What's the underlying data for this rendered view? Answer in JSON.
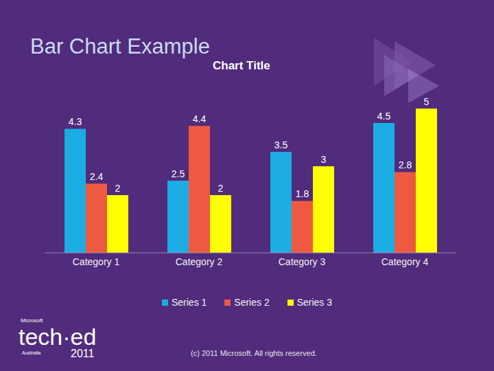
{
  "chart_data": {
    "type": "bar",
    "title": "Chart Title",
    "categories": [
      "Category 1",
      "Category 2",
      "Category 3",
      "Category 4"
    ],
    "series": [
      {
        "name": "Series 1",
        "color": "#1CADE4",
        "values": [
          4.3,
          2.5,
          3.5,
          4.5
        ]
      },
      {
        "name": "Series 2",
        "color": "#EE5A41",
        "values": [
          2.4,
          4.4,
          1.8,
          2.8
        ]
      },
      {
        "name": "Series 3",
        "color": "#FFFF00",
        "values": [
          2,
          2,
          3,
          5
        ]
      }
    ],
    "ylim": [
      0,
      5
    ],
    "grid": false,
    "legend": "bottom",
    "data_labels": true,
    "tick_labels": "x"
  },
  "slide": {
    "title": "Bar Chart Example",
    "footer": "(c) 2011 Microsoft. All rights reserved.",
    "logo": [
      "Microsoft",
      "tech·ed",
      "Australia",
      "2011"
    ]
  }
}
